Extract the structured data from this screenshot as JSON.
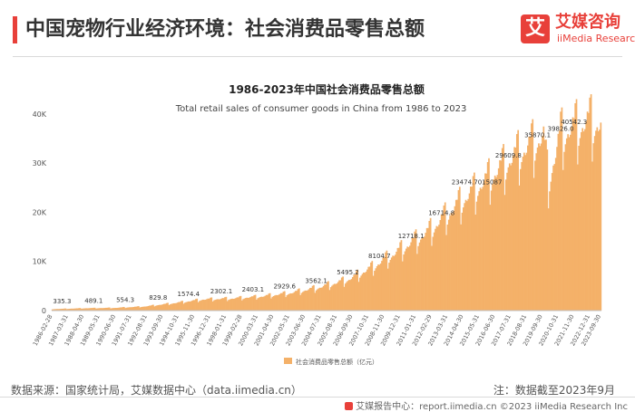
{
  "header": {
    "title": "中国宠物行业经济环境：社会消费品零售总额",
    "brand_badge": "艾",
    "brand_name": "艾媒咨询",
    "brand_en": "iiMedia Research"
  },
  "footer": {
    "source": "数据来源：国家统计局，艾媒数据中心（data.iimedia.cn）",
    "note": "注：数据截至2023年9月",
    "copyright": "艾媒报告中心：report.iimedia.cn   ©2023  iiMedia Research  Inc"
  },
  "colors": {
    "bar": "#f4b169",
    "accent": "#e8403a"
  },
  "chart_data": {
    "type": "bar",
    "title": "1986-2023年中国社会消费品零售总额",
    "subtitle": "Total retail sales of consumer goods in China from 1986 to 2023",
    "legend": "社会消费品零售总额（亿元）",
    "legend_position": "bottom",
    "ylim": [
      0,
      42000
    ],
    "yticks": [
      0,
      10000,
      20000,
      30000,
      40000
    ],
    "ytick_labels": [
      "0",
      "10K",
      "20K",
      "30K",
      "40K"
    ],
    "grid": false,
    "x_start": "1986-02",
    "x_end": "2023-09",
    "xtick_labels": [
      "1986-02-28",
      "1987-03-31",
      "1988-04-30",
      "1989-05-31",
      "1990-06-30",
      "1991-07-31",
      "1992-08-31",
      "1993-09-30",
      "1994-10-31",
      "1995-11-30",
      "1996-12-31",
      "1998-01-31",
      "1999-02-28",
      "2000-03-31",
      "2001-04-30",
      "2002-05-31",
      "2003-06-30",
      "2004-07-31",
      "2005-08-31",
      "2006-09-30",
      "2007-10-31",
      "2008-11-30",
      "2009-12-31",
      "2011-01-31",
      "2012-02-29",
      "2013-03-31",
      "2014-04-30",
      "2015-05-31",
      "2016-06-30",
      "2017-07-31",
      "2018-08-31",
      "2019-09-30",
      "2020-10-31",
      "2021-11-30",
      "2022-12-31",
      "2023-09-30"
    ],
    "trend_knots": [
      [
        "1986-02",
        300
      ],
      [
        "1988-06",
        480
      ],
      [
        "1990-06",
        554
      ],
      [
        "1992-06",
        830
      ],
      [
        "1994-06",
        1500
      ],
      [
        "1996-06",
        2250
      ],
      [
        "1998-06",
        2450
      ],
      [
        "2000-06",
        2850
      ],
      [
        "2002-06",
        3550
      ],
      [
        "2004-06",
        4700
      ],
      [
        "2006-06",
        6300
      ],
      [
        "2008-01",
        8700
      ],
      [
        "2009-12",
        12200
      ],
      [
        "2011-12",
        16000
      ],
      [
        "2013-12",
        21500
      ],
      [
        "2015-12",
        26500
      ],
      [
        "2017-12",
        31500
      ],
      [
        "2019-10",
        35000
      ],
      [
        "2020-02",
        26000
      ],
      [
        "2020-12",
        35500
      ],
      [
        "2021-12",
        37000
      ],
      [
        "2022-12",
        38000
      ],
      [
        "2023-09",
        37500
      ]
    ],
    "data_labels": [
      {
        "date": "1986-10",
        "text": "335.3"
      },
      {
        "date": "1988-12",
        "text": "489.1"
      },
      {
        "date": "1991-02",
        "text": "554.3"
      },
      {
        "date": "1993-05",
        "text": "829.8"
      },
      {
        "date": "1995-06",
        "text": "1574.4"
      },
      {
        "date": "1997-09",
        "text": "2302.1"
      },
      {
        "date": "1999-11",
        "text": "2403.1"
      },
      {
        "date": "2002-01",
        "text": "2929.6"
      },
      {
        "date": "2004-03",
        "text": "3562.1"
      },
      {
        "date": "2006-05",
        "text": "5495.2"
      },
      {
        "date": "2008-07",
        "text": "8104.7"
      },
      {
        "date": "2010-09",
        "text": "12718.1"
      },
      {
        "date": "2012-10",
        "text": "16714.8"
      },
      {
        "date": "2015-03",
        "text": "23474.7015087"
      },
      {
        "date": "2017-05",
        "text": "29609.8"
      },
      {
        "date": "2019-05",
        "text": "35870.1"
      },
      {
        "date": "2020-12",
        "text": "39826.0"
      },
      {
        "date": "2021-11",
        "text": "40542.3"
      }
    ]
  }
}
